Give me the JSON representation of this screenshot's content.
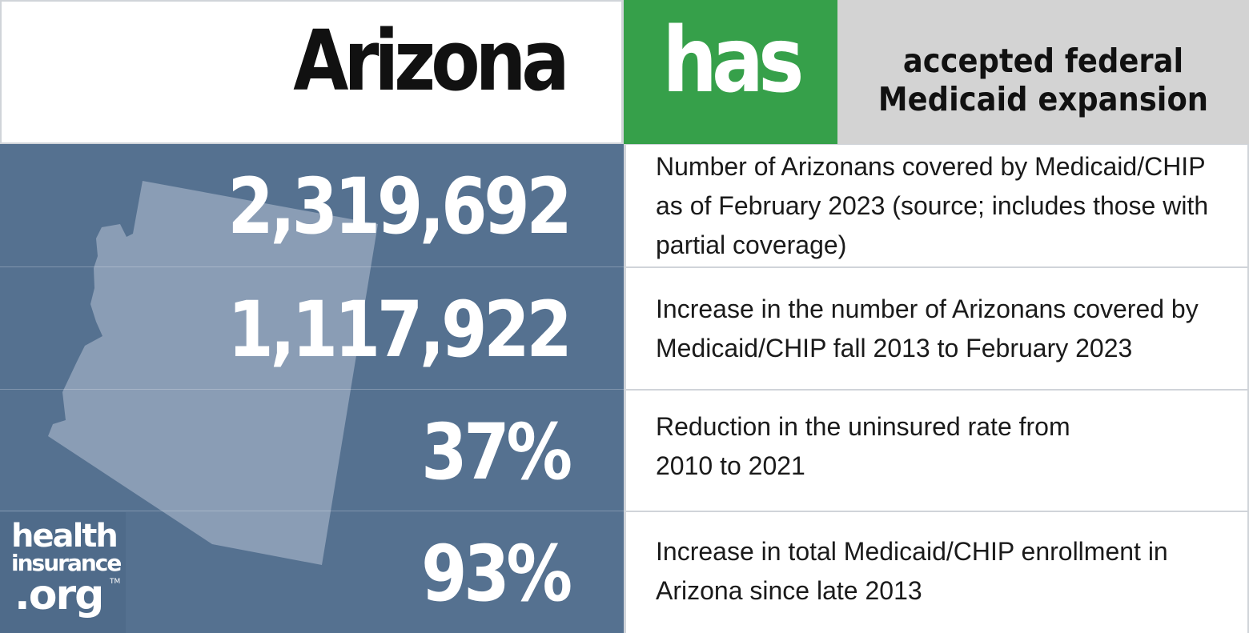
{
  "header": {
    "state": "Arizona",
    "status": "has",
    "description_line1": "accepted federal",
    "description_line2": "Medicaid expansion"
  },
  "colors": {
    "status_green": "#36a04a",
    "panel_blue": "#557190",
    "desc_gray": "#d3d3d3",
    "state_shape": "#8a9db5"
  },
  "stats": [
    {
      "value": "2,319,692",
      "description": "Number of Arizonans covered by Medicaid/CHIP as of February 2023 (source; includes those with partial coverage)"
    },
    {
      "value": "1,117,922",
      "description": "Increase in the number of Arizonans covered by Medicaid/CHIP fall 2013 to February 2023"
    },
    {
      "value": "37%",
      "description": "Reduction in the uninsured rate from 2010 to 2021"
    },
    {
      "value": "93%",
      "description": "Increase in total Medicaid/CHIP enrollment in Arizona since late 2013"
    }
  ],
  "logo": {
    "line1": "health",
    "line2": "insurance",
    "line3": ".org",
    "tm": "TM"
  }
}
